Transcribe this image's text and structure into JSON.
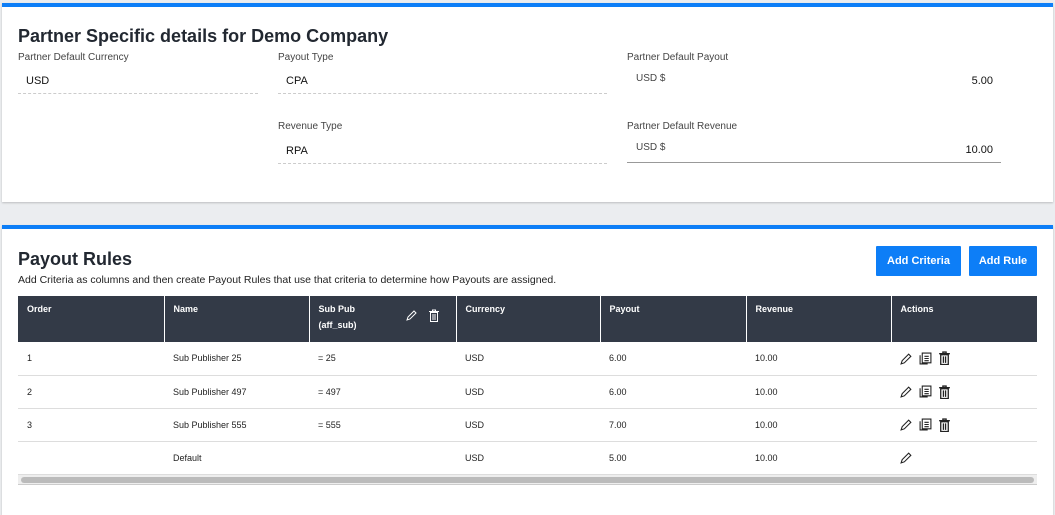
{
  "partner": {
    "title": "Partner Specific details for Demo Company",
    "currency_label": "Partner Default Currency",
    "currency": "USD",
    "payout_type_label": "Payout Type",
    "payout_type": "CPA",
    "revenue_type_label": "Revenue Type",
    "revenue_type": "RPA",
    "default_payout_label": "Partner Default Payout",
    "default_payout_currency": "USD $",
    "default_payout": "5.00",
    "default_revenue_label": "Partner Default Revenue",
    "default_revenue_currency": "USD $",
    "default_revenue": "10.00"
  },
  "rules": {
    "title": "Payout Rules",
    "description": "Add Criteria as columns and then create Payout Rules that use that criteria to determine how Payouts are assigned.",
    "add_criteria": "Add Criteria",
    "add_rule": "Add Rule",
    "columns": {
      "order": "Order",
      "name": "Name",
      "subpub": "Sub Pub",
      "subpub2": "(aff_sub)",
      "currency": "Currency",
      "payout": "Payout",
      "revenue": "Revenue",
      "actions": "Actions"
    },
    "rows": [
      {
        "order": "1",
        "name": "Sub Publisher 25",
        "subpub": "= 25",
        "currency": "USD",
        "payout": "6.00",
        "revenue": "10.00"
      },
      {
        "order": "2",
        "name": "Sub Publisher 497",
        "subpub": "= 497",
        "currency": "USD",
        "payout": "6.00",
        "revenue": "10.00"
      },
      {
        "order": "3",
        "name": "Sub Publisher 555",
        "subpub": "= 555",
        "currency": "USD",
        "payout": "7.00",
        "revenue": "10.00"
      },
      {
        "order": "",
        "name": "Default",
        "subpub": "",
        "currency": "USD",
        "payout": "5.00",
        "revenue": "10.00"
      }
    ]
  },
  "colors": {
    "accent": "#0d7ef7",
    "header_bg": "#333a47"
  }
}
